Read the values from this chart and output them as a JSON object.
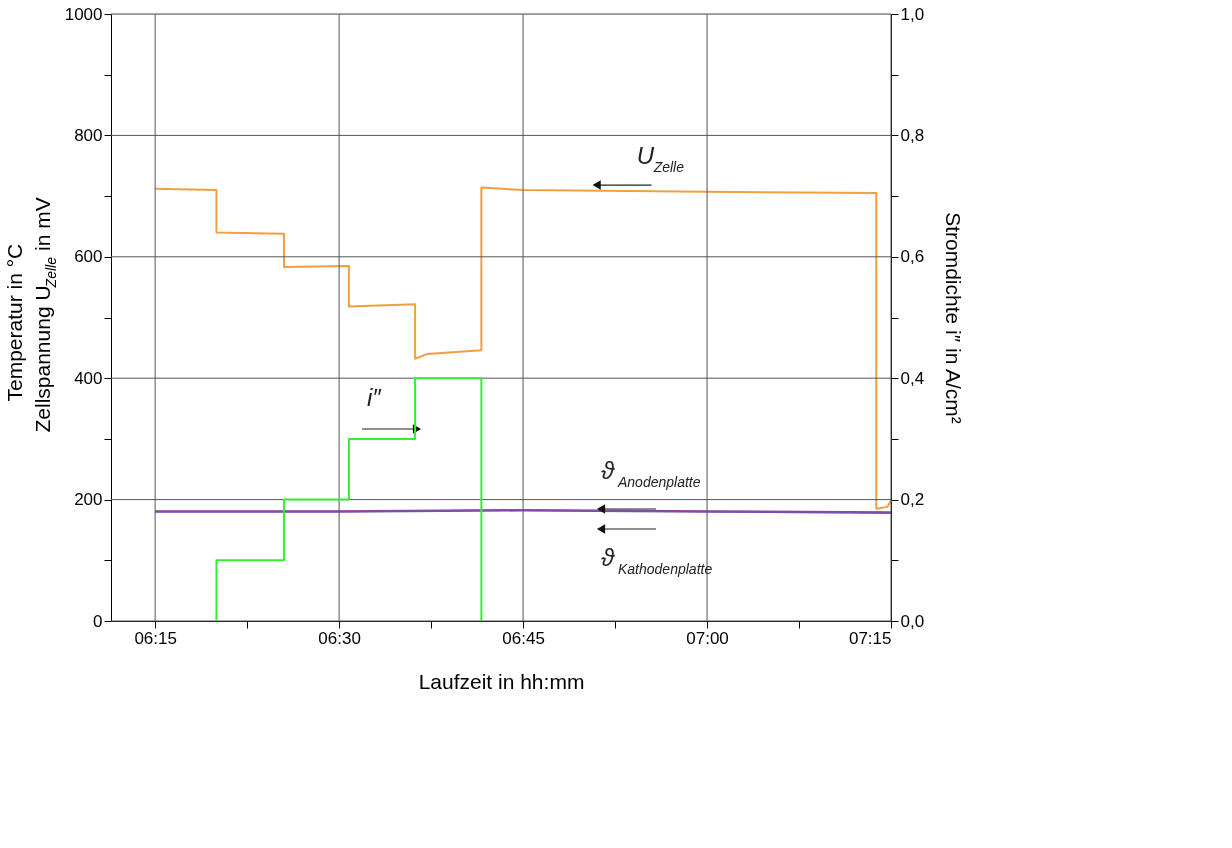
{
  "chart_data": {
    "type": "line",
    "xlabel": "Laufzeit in hh:mm",
    "ylabel": "Temperatur in °C\nZellspannung U$_{Zelle}$ in mV",
    "y2label": "Stromdichte i″ in A/cm²",
    "xlim": [
      6.19,
      7.25
    ],
    "xticks": [
      {
        "value": 6.25,
        "label": "06:15"
      },
      {
        "value": 6.375,
        "label": null
      },
      {
        "value": 6.5,
        "label": "06:30"
      },
      {
        "value": 6.625,
        "label": null
      },
      {
        "value": 6.75,
        "label": "06:45"
      },
      {
        "value": 6.875,
        "label": null
      },
      {
        "value": 7.0,
        "label": "07:00"
      },
      {
        "value": 7.125,
        "label": null
      },
      {
        "value": 7.25,
        "label": "07:15"
      }
    ],
    "ylim": [
      0,
      1000
    ],
    "yticks": [
      0,
      {
        "value": 100,
        "label": null
      },
      200,
      {
        "value": 300,
        "label": null
      },
      400,
      {
        "value": 500,
        "label": null
      },
      600,
      {
        "value": 700,
        "label": null
      },
      800,
      {
        "value": 900,
        "label": null
      },
      1000
    ],
    "y2lim": [
      0,
      1
    ],
    "y2ticks": [
      {
        "value": 0,
        "label": "0,0"
      },
      {
        "value": 0.1,
        "label": null
      },
      {
        "value": 0.2,
        "label": "0,2"
      },
      {
        "value": 0.3,
        "label": null
      },
      {
        "value": 0.4,
        "label": "0,4"
      },
      {
        "value": 0.5,
        "label": null
      },
      {
        "value": 0.6,
        "label": "0,6"
      },
      {
        "value": 0.7,
        "label": null
      },
      {
        "value": 0.8,
        "label": "0,8"
      },
      {
        "value": 0.9,
        "label": null
      },
      {
        "value": 1.0,
        "label": "1,0"
      }
    ],
    "grid": true,
    "series": [
      {
        "color": "#f0a040",
        "x": [
          6.25,
          6.3333,
          6.3333,
          6.425,
          6.425,
          6.5133,
          6.5133,
          6.6033,
          6.6033,
          6.62,
          6.6933,
          6.6933,
          6.75,
          7.0,
          7.23,
          7.23,
          7.245,
          7.25
        ],
        "values": [
          712,
          710,
          640,
          638,
          583,
          585,
          518,
          522,
          432,
          440,
          446,
          714,
          710,
          707,
          705,
          185,
          188,
          198
        ]
      },
      {
        "color": "#9b3f9b",
        "x": [
          6.25,
          6.5,
          6.75,
          7.0,
          7.25
        ],
        "values": [
          181,
          181,
          183,
          181,
          179
        ]
      },
      {
        "color": "#7a4fb0",
        "x": [
          6.25,
          6.5,
          6.75,
          7.0,
          7.25
        ],
        "values": [
          180,
          180,
          182,
          180,
          178
        ]
      },
      {
        "color": "#33ee33",
        "axis": "y2",
        "x": [
          6.3333,
          6.3333,
          6.425,
          6.425,
          6.5133,
          6.5133,
          6.6033,
          6.6033,
          6.6933,
          6.6933
        ],
        "values": [
          0,
          0.1,
          0.1,
          0.2,
          0.2,
          0.3,
          0.3,
          0.4,
          0.4,
          0
        ]
      }
    ],
    "annotations": [
      {
        "text": "U$_{Zelle}$",
        "x": 6.85,
        "y": 710
      },
      "i″",
      "ϑ$_{Anodenplatte}$",
      "ϑ$_{Kathodenplatte}$"
    ]
  }
}
